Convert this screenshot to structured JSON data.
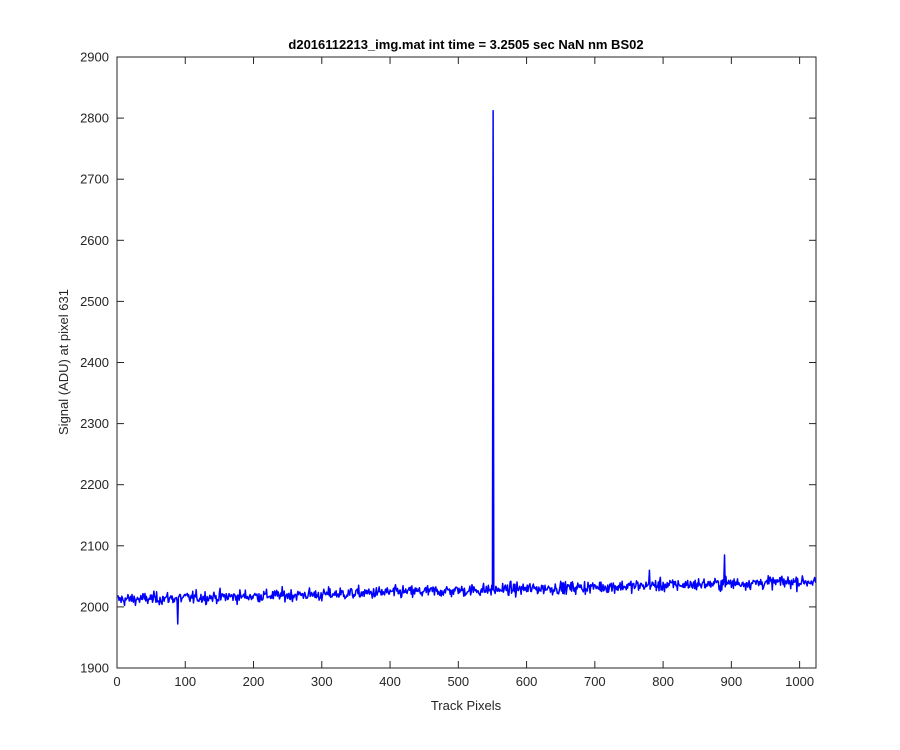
{
  "chart_data": {
    "type": "line",
    "title": "d2016112213_img.mat int time = 3.2505 sec  NaN nm BS02",
    "xlabel": "Track Pixels",
    "ylabel": "Signal (ADU) at pixel 631",
    "xlim": [
      0,
      1024
    ],
    "ylim": [
      1900,
      2900
    ],
    "xticks": [
      0,
      100,
      200,
      300,
      400,
      500,
      600,
      700,
      800,
      900,
      1000
    ],
    "yticks": [
      1900,
      2000,
      2100,
      2200,
      2300,
      2400,
      2500,
      2600,
      2700,
      2800,
      2900
    ],
    "xtick_labels": [
      "0",
      "100",
      "200",
      "300",
      "400",
      "500",
      "600",
      "700",
      "800",
      "900",
      "1000"
    ],
    "ytick_labels": [
      "1900",
      "2000",
      "2100",
      "2200",
      "2300",
      "2400",
      "2500",
      "2600",
      "2700",
      "2800",
      "2900"
    ],
    "grid": false,
    "series": [
      {
        "color": "#0000ff",
        "x_start": 1,
        "x_step": 1,
        "baseline_start": 2012,
        "baseline_end": 2042,
        "noise_amplitude": 12,
        "spike": {
          "x": 551,
          "y": 2812
        },
        "points_sample": [
          [
            0,
            2018
          ],
          [
            89,
            1972
          ],
          [
            300,
            2010
          ],
          [
            500,
            2022
          ],
          [
            551,
            2812
          ],
          [
            553,
            2025
          ],
          [
            780,
            2060
          ],
          [
            890,
            2085
          ],
          [
            1024,
            2040
          ]
        ]
      }
    ]
  }
}
